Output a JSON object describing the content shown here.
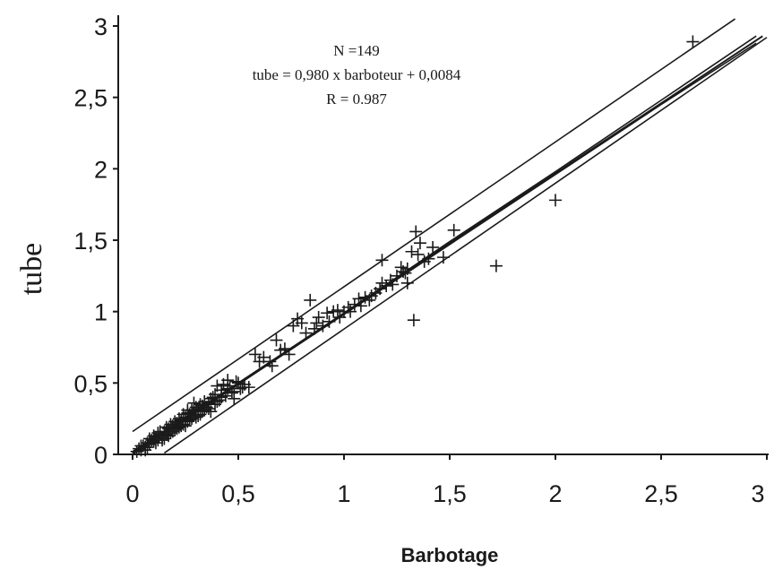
{
  "chart_data": {
    "type": "scatter",
    "xlabel": "Barbotage",
    "ylabel": "tube",
    "xlim": [
      0,
      3
    ],
    "ylim": [
      0,
      3
    ],
    "xticks": [
      "0",
      "0,5",
      "1",
      "1,5",
      "2",
      "2,5",
      "3"
    ],
    "yticks": [
      "0",
      "0,5",
      "1",
      "1,5",
      "2",
      "2,5",
      "3"
    ],
    "annotation": [
      "N =149",
      "tube = 0,980 x barboteur + 0,0084",
      "R = 0.987"
    ],
    "grid": false,
    "regression": {
      "slope": 0.98,
      "intercept": 0.0084
    },
    "confidence_band": {
      "x": [
        0.0,
        0.5,
        1.0,
        1.5,
        2.0,
        2.5,
        2.95
      ],
      "lower": [
        0.0,
        0.49,
        0.98,
        1.47,
        1.96,
        2.45,
        2.88
      ],
      "upper": [
        0.02,
        0.5,
        0.99,
        1.49,
        1.98,
        2.48,
        2.93
      ]
    },
    "prediction_band": {
      "x": [
        0.15,
        3.0
      ],
      "lower": [
        0.01,
        2.92
      ],
      "upper": [
        0.16,
        3.05
      ]
    },
    "marker": "+",
    "color": "#1a1a1a",
    "points": [
      [
        0.02,
        0.02
      ],
      [
        0.03,
        0.04
      ],
      [
        0.04,
        0.03
      ],
      [
        0.05,
        0.06
      ],
      [
        0.06,
        0.05
      ],
      [
        0.07,
        0.08
      ],
      [
        0.08,
        0.07
      ],
      [
        0.09,
        0.1
      ],
      [
        0.1,
        0.09
      ],
      [
        0.11,
        0.12
      ],
      [
        0.12,
        0.1
      ],
      [
        0.13,
        0.14
      ],
      [
        0.14,
        0.12
      ],
      [
        0.15,
        0.16
      ],
      [
        0.16,
        0.14
      ],
      [
        0.17,
        0.18
      ],
      [
        0.18,
        0.15
      ],
      [
        0.19,
        0.2
      ],
      [
        0.2,
        0.17
      ],
      [
        0.21,
        0.22
      ],
      [
        0.22,
        0.19
      ],
      [
        0.23,
        0.24
      ],
      [
        0.24,
        0.21
      ],
      [
        0.25,
        0.26
      ],
      [
        0.26,
        0.23
      ],
      [
        0.27,
        0.28
      ],
      [
        0.28,
        0.25
      ],
      [
        0.29,
        0.3
      ],
      [
        0.3,
        0.26
      ],
      [
        0.31,
        0.32
      ],
      [
        0.32,
        0.28
      ],
      [
        0.33,
        0.34
      ],
      [
        0.12,
        0.15
      ],
      [
        0.15,
        0.11
      ],
      [
        0.18,
        0.21
      ],
      [
        0.21,
        0.18
      ],
      [
        0.24,
        0.28
      ],
      [
        0.27,
        0.24
      ],
      [
        0.3,
        0.33
      ],
      [
        0.33,
        0.3
      ],
      [
        0.36,
        0.36
      ],
      [
        0.38,
        0.4
      ],
      [
        0.4,
        0.37
      ],
      [
        0.42,
        0.45
      ],
      [
        0.44,
        0.41
      ],
      [
        0.46,
        0.48
      ],
      [
        0.48,
        0.44
      ],
      [
        0.5,
        0.5
      ],
      [
        0.52,
        0.47
      ],
      [
        0.4,
        0.48
      ],
      [
        0.45,
        0.52
      ],
      [
        0.48,
        0.39
      ],
      [
        0.35,
        0.33
      ],
      [
        0.37,
        0.3
      ],
      [
        0.29,
        0.36
      ],
      [
        0.26,
        0.31
      ],
      [
        0.55,
        0.47
      ],
      [
        0.58,
        0.7
      ],
      [
        0.62,
        0.68
      ],
      [
        0.65,
        0.65
      ],
      [
        0.68,
        0.8
      ],
      [
        0.72,
        0.74
      ],
      [
        0.76,
        0.9
      ],
      [
        0.78,
        0.95
      ],
      [
        0.8,
        0.92
      ],
      [
        0.84,
        1.08
      ],
      [
        0.86,
        0.88
      ],
      [
        0.88,
        0.96
      ],
      [
        0.9,
        0.9
      ],
      [
        0.92,
        0.99
      ],
      [
        0.95,
        1.0
      ],
      [
        0.98,
        0.96
      ],
      [
        1.0,
        1.0
      ],
      [
        1.02,
        1.03
      ],
      [
        1.05,
        1.05
      ],
      [
        1.08,
        1.04
      ],
      [
        1.1,
        1.1
      ],
      [
        1.12,
        1.08
      ],
      [
        1.15,
        1.13
      ],
      [
        1.18,
        1.2
      ],
      [
        1.2,
        1.18
      ],
      [
        1.22,
        1.22
      ],
      [
        1.25,
        1.25
      ],
      [
        1.18,
        1.36
      ],
      [
        1.28,
        1.28
      ],
      [
        1.3,
        1.3
      ],
      [
        1.32,
        1.42
      ],
      [
        1.33,
        0.94
      ],
      [
        1.34,
        1.56
      ],
      [
        1.36,
        1.48
      ],
      [
        1.38,
        1.35
      ],
      [
        1.3,
        1.2
      ],
      [
        1.42,
        1.45
      ],
      [
        1.47,
        1.38
      ],
      [
        1.52,
        1.57
      ],
      [
        1.72,
        1.32
      ],
      [
        2.0,
        1.78
      ],
      [
        2.65,
        2.89
      ],
      [
        0.06,
        0.03
      ],
      [
        0.08,
        0.11
      ],
      [
        0.1,
        0.13
      ],
      [
        0.14,
        0.1
      ],
      [
        0.16,
        0.19
      ],
      [
        0.19,
        0.16
      ],
      [
        0.22,
        0.25
      ],
      [
        0.25,
        0.2
      ],
      [
        0.28,
        0.31
      ],
      [
        0.31,
        0.27
      ],
      [
        0.34,
        0.37
      ],
      [
        0.36,
        0.32
      ],
      [
        0.39,
        0.42
      ],
      [
        0.41,
        0.38
      ],
      [
        0.43,
        0.49
      ],
      [
        0.47,
        0.43
      ],
      [
        0.49,
        0.51
      ],
      [
        0.51,
        0.46
      ],
      [
        0.6,
        0.65
      ],
      [
        0.66,
        0.62
      ],
      [
        0.7,
        0.73
      ],
      [
        0.74,
        0.7
      ],
      [
        0.82,
        0.85
      ],
      [
        0.87,
        0.92
      ],
      [
        0.93,
        0.93
      ],
      [
        0.97,
        1.01
      ],
      [
        1.03,
        1.0
      ],
      [
        1.07,
        1.09
      ],
      [
        1.13,
        1.11
      ],
      [
        1.17,
        1.16
      ],
      [
        1.23,
        1.19
      ],
      [
        1.27,
        1.31
      ],
      [
        1.29,
        1.27
      ],
      [
        1.35,
        1.4
      ],
      [
        1.4,
        1.37
      ],
      [
        0.04,
        0.06
      ],
      [
        0.07,
        0.05
      ],
      [
        0.11,
        0.08
      ],
      [
        0.13,
        0.16
      ],
      [
        0.17,
        0.13
      ],
      [
        0.2,
        0.23
      ],
      [
        0.23,
        0.2
      ],
      [
        0.26,
        0.29
      ],
      [
        0.29,
        0.27
      ],
      [
        0.32,
        0.35
      ],
      [
        0.34,
        0.31
      ],
      [
        0.37,
        0.39
      ],
      [
        0.39,
        0.35
      ],
      [
        0.42,
        0.4
      ],
      [
        0.45,
        0.46
      ],
      [
        0.53,
        0.49
      ]
    ]
  }
}
